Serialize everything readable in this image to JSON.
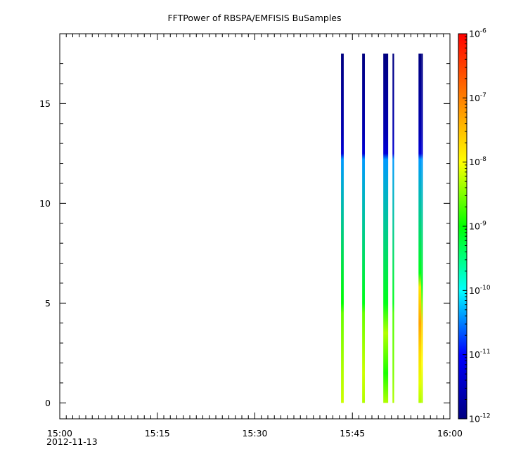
{
  "chart_data": {
    "type": "heatmap",
    "title": "FFTPower of RBSPA/EMFISIS  BuSamples",
    "x_axis": {
      "ticks": [
        "15:00",
        "15:15",
        "15:30",
        "15:45",
        "16:00"
      ],
      "range_minutes_after_1500": [
        0,
        60
      ],
      "date_label": "2012-11-13"
    },
    "y_axis": {
      "range": [
        -0.8,
        18.5
      ],
      "ticks": [
        0,
        5,
        10,
        15
      ]
    },
    "colorbar": {
      "scale": "log",
      "range": [
        1e-12,
        1e-06
      ],
      "tick_exponents": [
        -6,
        -7,
        -8,
        -9,
        -10,
        -11,
        -12
      ],
      "tick_base": "10",
      "colormap": [
        "#000080",
        "#0000ff",
        "#00ffff",
        "#00ff00",
        "#ffff00",
        "#ff7f00",
        "#ff0000"
      ]
    },
    "strips": [
      {
        "start": "15:43:15",
        "end": "15:43:40",
        "profile": [
          [
            0.0,
            -8.2
          ],
          [
            1.5,
            -8.3
          ],
          [
            4.5,
            -8.6
          ],
          [
            5.0,
            -9.0
          ],
          [
            12.2,
            -10.4
          ],
          [
            12.5,
            -11.3
          ],
          [
            13.5,
            -11.6
          ],
          [
            17.5,
            -12.0
          ]
        ]
      },
      {
        "start": "15:46:30",
        "end": "15:46:55",
        "profile": [
          [
            0.0,
            -8.3
          ],
          [
            1.5,
            -8.2
          ],
          [
            4.5,
            -8.6
          ],
          [
            5.0,
            -9.1
          ],
          [
            12.2,
            -10.4
          ],
          [
            12.5,
            -11.3
          ],
          [
            13.5,
            -11.6
          ],
          [
            17.5,
            -12.0
          ]
        ]
      },
      {
        "start": "15:49:45",
        "end": "15:50:30",
        "profile": [
          [
            0.0,
            -8.3
          ],
          [
            1.5,
            -8.9
          ],
          [
            3.5,
            -8.3
          ],
          [
            5.0,
            -9.1
          ],
          [
            12.2,
            -10.4
          ],
          [
            12.5,
            -11.3
          ],
          [
            13.5,
            -11.6
          ],
          [
            17.5,
            -12.0
          ]
        ]
      },
      {
        "start": "15:51:10",
        "end": "15:51:25",
        "profile": [
          [
            0.0,
            -8.3
          ],
          [
            1.5,
            -8.5
          ],
          [
            4.5,
            -8.7
          ],
          [
            5.0,
            -9.1
          ],
          [
            12.2,
            -10.4
          ],
          [
            12.5,
            -11.3
          ],
          [
            13.5,
            -11.6
          ],
          [
            17.5,
            -12.0
          ]
        ]
      },
      {
        "start": "15:55:10",
        "end": "15:55:35",
        "profile": [
          [
            0.0,
            -8.3
          ],
          [
            1.0,
            -8.1
          ],
          [
            2.5,
            -7.7
          ],
          [
            4.0,
            -7.3
          ],
          [
            5.8,
            -7.8
          ],
          [
            6.5,
            -9.1
          ],
          [
            12.2,
            -10.4
          ],
          [
            12.5,
            -11.3
          ],
          [
            13.5,
            -11.6
          ],
          [
            17.5,
            -12.0
          ]
        ]
      },
      {
        "start": "15:55:35",
        "end": "15:55:50",
        "profile": [
          [
            0.0,
            -8.3
          ],
          [
            2.0,
            -8.0
          ],
          [
            4.0,
            -7.6
          ],
          [
            5.0,
            -8.5
          ],
          [
            6.0,
            -9.1
          ],
          [
            12.2,
            -10.4
          ],
          [
            12.5,
            -11.3
          ],
          [
            13.5,
            -11.6
          ],
          [
            17.5,
            -12.0
          ]
        ]
      }
    ]
  }
}
